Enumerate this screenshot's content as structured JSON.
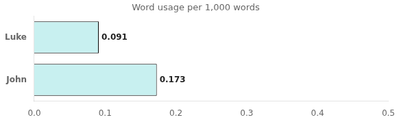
{
  "chart_data": {
    "type": "bar",
    "orientation": "horizontal",
    "title": "Word usage per 1,000 words",
    "categories": [
      "Luke",
      "John"
    ],
    "values": [
      0.091,
      0.173
    ],
    "color": "#c8f0f0",
    "xlim": [
      0,
      0.5
    ],
    "xticks": [
      {
        "value": 0,
        "label": "0.0"
      },
      0.1,
      0.2,
      0.3,
      0.4,
      0.5
    ],
    "grid": false,
    "data_labels": true
  }
}
